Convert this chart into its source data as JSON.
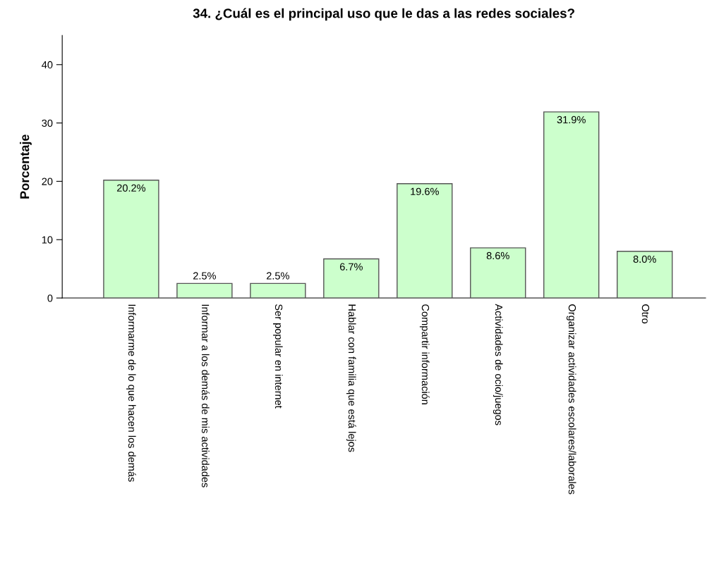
{
  "chart_data": {
    "type": "bar",
    "title": "34. ¿Cuál es el principal uso que le das a las redes sociales?",
    "ylabel": "Porcentaje",
    "categories": [
      "Informarme de lo que hacen los demás",
      "Informar a los demás de mis actividades",
      "Ser popular en internet",
      "Hablar con familia que está lejos",
      "Compartir información",
      "Actividades de ocio/juegos",
      "Organizar actividades escolares/laborales",
      "Otro"
    ],
    "values": [
      20.2,
      2.5,
      2.5,
      6.7,
      19.6,
      8.6,
      31.9,
      8.0
    ],
    "value_labels": [
      "20.2%",
      "2.5%",
      "2.5%",
      "6.7%",
      "19.6%",
      "8.6%",
      "31.9%",
      "8.0%"
    ],
    "color": "#ccffcc",
    "ylim": [
      0,
      45
    ],
    "yticks": [
      0,
      10,
      20,
      30,
      40
    ],
    "grid": false,
    "legend": false
  }
}
